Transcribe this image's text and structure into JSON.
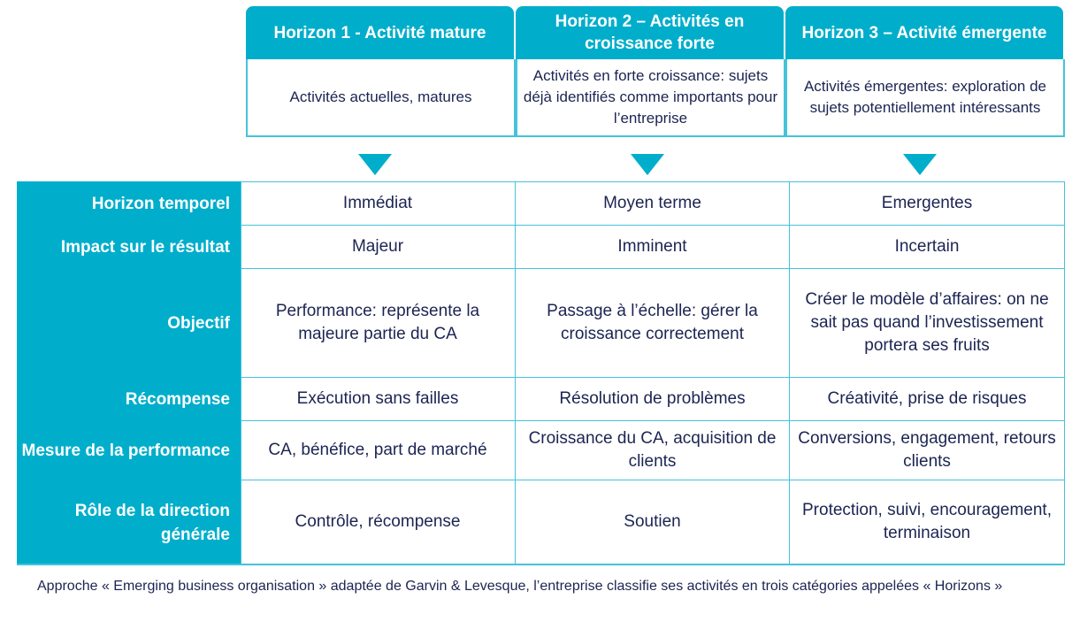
{
  "colors": {
    "accent": "#00aecb",
    "border": "#45c3da",
    "text": "#1c2452"
  },
  "horizons": [
    {
      "title": "Horizon 1  - Activité mature",
      "description": "Activités actuelles, matures"
    },
    {
      "title": "Horizon 2 – Activités en croissance forte",
      "description": "Activités en forte croissance: sujets déjà identifiés comme importants pour l’entreprise"
    },
    {
      "title": "Horizon 3 – Activité émergente",
      "description": "Activités émergentes: exploration de sujets potentiellement intéressants"
    }
  ],
  "arrow_icon": "triangle-down",
  "rows": [
    {
      "label": "Horizon temporel",
      "cells": [
        "Immédiat",
        "Moyen terme",
        "Emergentes"
      ]
    },
    {
      "label": "Impact sur le résultat",
      "cells": [
        "Majeur",
        "Imminent",
        "Incertain"
      ]
    },
    {
      "label": "Objectif",
      "cells": [
        "Performance: représente la majeure partie du CA",
        "Passage à l’échelle: gérer la croissance correctement",
        "Créer le modèle d’affaires: on ne sait pas quand l’investissement portera ses fruits"
      ]
    },
    {
      "label": "Récompense",
      "cells": [
        "Exécution sans failles",
        "Résolution de problèmes",
        "Créativité, prise de risques"
      ]
    },
    {
      "label": "Mesure de la performance",
      "cells": [
        "CA, bénéfice, part de marché",
        "Croissance du CA, acquisition de clients",
        "Conversions, engagement, retours clients"
      ]
    },
    {
      "label": "Rôle de la direction générale",
      "cells": [
        "Contrôle, récompense",
        "Soutien",
        "Protection, suivi, encouragement, terminaison"
      ]
    }
  ],
  "footnote": "Approche « Emerging business organisation » adaptée de Garvin & Levesque, l’entreprise classifie ses activités en trois catégories appelées « Horizons »"
}
